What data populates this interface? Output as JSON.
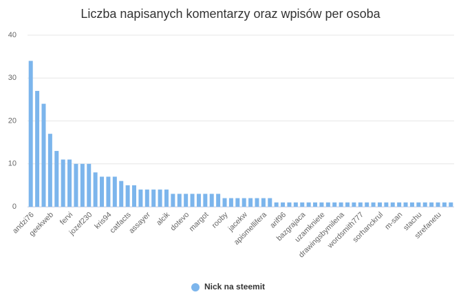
{
  "chart_data": {
    "type": "bar",
    "title": "Liczba napisanych komentarzy oraz wpisów per osoba",
    "categories": [
      "andzi76",
      null,
      null,
      "geekweb",
      null,
      null,
      "fervi",
      null,
      null,
      "jozef230",
      null,
      null,
      "kris94",
      null,
      null,
      "catfacts",
      null,
      null,
      "assayer",
      null,
      null,
      "alcik",
      null,
      null,
      "dotevo",
      null,
      null,
      "margot",
      null,
      null,
      "rooby",
      null,
      null,
      "jacekw",
      null,
      null,
      "apismellifera",
      null,
      null,
      "arif96",
      null,
      null,
      "bazgrajaca",
      null,
      null,
      "uzamkniete",
      null,
      null,
      "drawingsbymilena",
      null,
      null,
      "wordsmith777",
      null,
      null,
      "sorhanckrul",
      null,
      null,
      "m-san",
      null,
      null,
      "stachu",
      null,
      null,
      "strefanetu",
      null,
      null
    ],
    "series": [
      {
        "name": "Nick na steemit",
        "color": "#7cb5ec",
        "values": [
          34,
          27,
          24,
          17,
          13,
          11,
          11,
          10,
          10,
          10,
          8,
          7,
          7,
          7,
          6,
          5,
          5,
          4,
          4,
          4,
          4,
          4,
          3,
          3,
          3,
          3,
          3,
          3,
          3,
          3,
          2,
          2,
          2,
          2,
          2,
          2,
          2,
          2,
          1,
          1,
          1,
          1,
          1,
          1,
          1,
          1,
          1,
          1,
          1,
          1,
          1,
          1,
          1,
          1,
          1,
          1,
          1,
          1,
          1,
          1,
          1,
          1,
          1,
          1,
          1,
          1
        ]
      }
    ],
    "ylim": [
      0,
      40
    ],
    "yticks": [
      0,
      10,
      20,
      30,
      40
    ],
    "grid": true,
    "legend": "bottom"
  }
}
